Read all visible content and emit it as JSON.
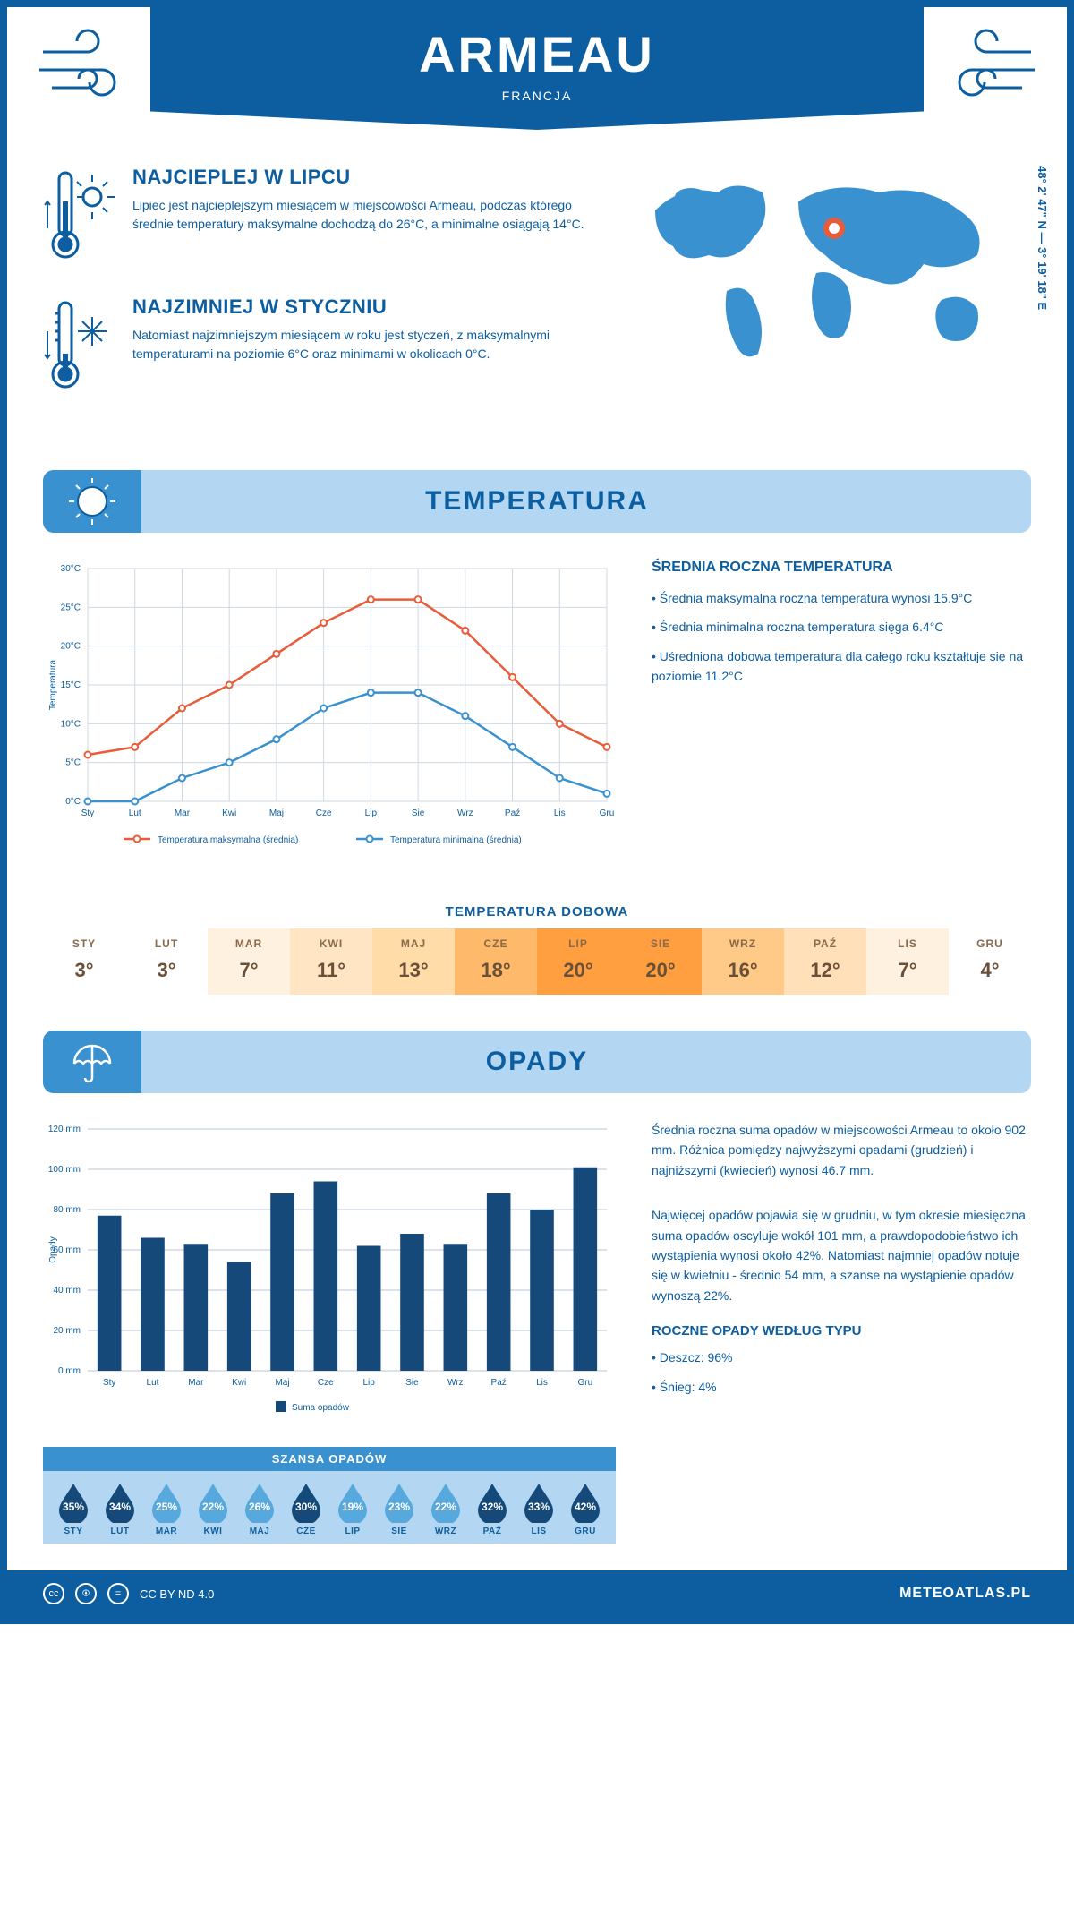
{
  "header": {
    "title": "ARMEAU",
    "subtitle": "FRANCJA"
  },
  "coords": "48° 2' 47\" N — 3° 19' 18\" E",
  "map": {
    "pin_x": 220,
    "pin_y": 70
  },
  "colors": {
    "primary": "#0d5ea0",
    "light": "#b3d7f2",
    "mid": "#3a91d0",
    "accent_red": "#e85c3a",
    "accent_blue": "#3a91d0",
    "drop_dark": "#14497a",
    "drop_light": "#57a8dd"
  },
  "warm": {
    "title": "NAJCIEPLEJ W LIPCU",
    "text": "Lipiec jest najcieplejszym miesiącem w miejscowości Armeau, podczas którego średnie temperatury maksymalne dochodzą do 26°C, a minimalne osiągają 14°C."
  },
  "cold": {
    "title": "NAJZIMNIEJ W STYCZNIU",
    "text": "Natomiast najzimniejszym miesiącem w roku jest styczeń, z maksymalnymi temperaturami na poziomie 6°C oraz minimami w okolicach 0°C."
  },
  "temp_section": {
    "title": "TEMPERATURA",
    "avg_title": "ŚREDNIA ROCZNA TEMPERATURA",
    "bullets": [
      "• Średnia maksymalna roczna temperatura wynosi 15.9°C",
      "• Średnia minimalna roczna temperatura sięga 6.4°C",
      "• Uśredniona dobowa temperatura dla całego roku kształtuje się na poziomie 11.2°C"
    ],
    "chart": {
      "type": "line",
      "months": [
        "Sty",
        "Lut",
        "Mar",
        "Kwi",
        "Maj",
        "Cze",
        "Lip",
        "Sie",
        "Wrz",
        "Paź",
        "Lis",
        "Gru"
      ],
      "max": [
        6,
        7,
        12,
        15,
        19,
        23,
        26,
        26,
        22,
        16,
        10,
        7
      ],
      "min": [
        0,
        0,
        3,
        5,
        8,
        12,
        14,
        14,
        11,
        7,
        3,
        1
      ],
      "ylim": [
        0,
        30
      ],
      "ystep": 5,
      "max_color": "#e85c3a",
      "min_color": "#3a91d0",
      "ylabel": "Temperatura",
      "legend_max": "Temperatura maksymalna (średnia)",
      "legend_min": "Temperatura minimalna (średnia)",
      "label_fontsize": 10
    },
    "daily_title": "TEMPERATURA DOBOWA",
    "daily": {
      "months": [
        "STY",
        "LUT",
        "MAR",
        "KWI",
        "MAJ",
        "CZE",
        "LIP",
        "SIE",
        "WRZ",
        "PAŹ",
        "LIS",
        "GRU"
      ],
      "values": [
        "3°",
        "3°",
        "7°",
        "11°",
        "13°",
        "18°",
        "20°",
        "20°",
        "16°",
        "12°",
        "7°",
        "4°"
      ],
      "bgcolors": [
        "#ffffff",
        "#ffffff",
        "#fff1e0",
        "#ffe5c4",
        "#ffdca8",
        "#ffb96b",
        "#ff9f3f",
        "#ff9f3f",
        "#ffc987",
        "#ffe0b8",
        "#fff1e0",
        "#ffffff"
      ]
    }
  },
  "precip_section": {
    "title": "OPADY",
    "text1": "Średnia roczna suma opadów w miejscowości Armeau to około 902 mm. Różnica pomiędzy najwyższymi opadami (grudzień) i najniższymi (kwiecień) wynosi 46.7 mm.",
    "text2": "Najwięcej opadów pojawia się w grudniu, w tym okresie miesięczna suma opadów oscyluje wokół 101 mm, a prawdopodobieństwo ich wystąpienia wynosi około 42%. Natomiast najmniej opadów notuje się w kwietniu - średnio 54 mm, a szanse na wystąpienie opadów wynoszą 22%.",
    "chart": {
      "type": "bar",
      "months": [
        "Sty",
        "Lut",
        "Mar",
        "Kwi",
        "Maj",
        "Cze",
        "Lip",
        "Sie",
        "Wrz",
        "Paź",
        "Lis",
        "Gru"
      ],
      "values": [
        77,
        66,
        63,
        54,
        88,
        94,
        62,
        68,
        63,
        88,
        80,
        101
      ],
      "ylim": [
        0,
        120
      ],
      "ystep": 20,
      "bar_color": "#14497a",
      "ylabel": "Opady",
      "legend": "Suma opadów",
      "label_fontsize": 10
    },
    "chance": {
      "title": "SZANSA OPADÓW",
      "months": [
        "STY",
        "LUT",
        "MAR",
        "KWI",
        "MAJ",
        "CZE",
        "LIP",
        "SIE",
        "WRZ",
        "PAŹ",
        "LIS",
        "GRU"
      ],
      "values": [
        "35%",
        "34%",
        "25%",
        "22%",
        "26%",
        "30%",
        "19%",
        "23%",
        "22%",
        "32%",
        "33%",
        "42%"
      ],
      "dark": [
        true,
        true,
        false,
        false,
        false,
        true,
        false,
        false,
        false,
        true,
        true,
        true
      ]
    },
    "type_title": "ROCZNE OPADY WEDŁUG TYPU",
    "type_bullets": [
      "• Deszcz: 96%",
      "• Śnieg: 4%"
    ]
  },
  "footer": {
    "license": "CC BY-ND 4.0",
    "site": "METEOATLAS.PL"
  }
}
